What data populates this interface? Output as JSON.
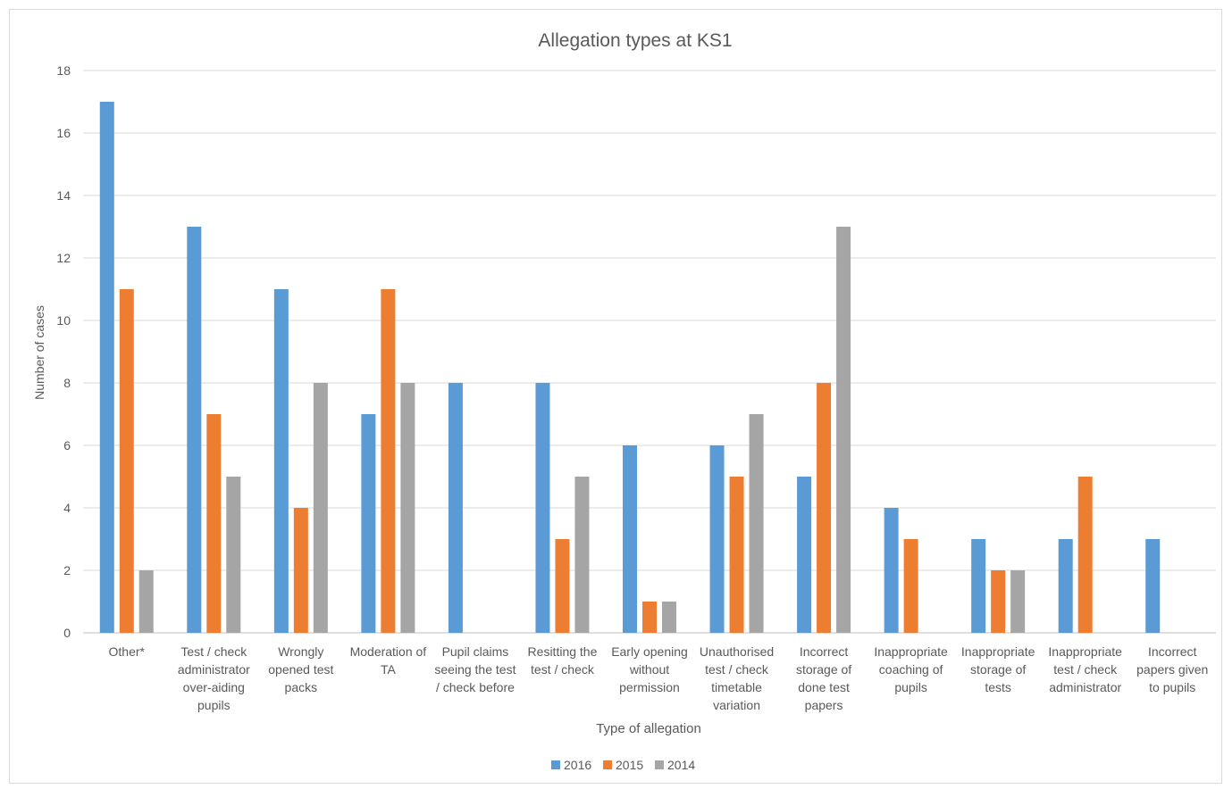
{
  "chart_data": {
    "type": "bar",
    "title": "Allegation types at KS1",
    "xlabel": "Type of allegation",
    "ylabel": "Number of cases",
    "ylim": [
      0,
      18
    ],
    "yticks": [
      "0",
      "2",
      "4",
      "6",
      "8",
      "10",
      "12",
      "14",
      "16",
      "18"
    ],
    "grid": true,
    "legend_position": "bottom",
    "categories": [
      [
        "Other*"
      ],
      [
        "Test / check",
        "administrator",
        "over-aiding",
        "pupils"
      ],
      [
        "Wrongly",
        "opened test",
        "packs"
      ],
      [
        "Moderation of",
        "TA"
      ],
      [
        "Pupil claims",
        "seeing the test",
        "/ check before"
      ],
      [
        "Resitting the",
        "test / check"
      ],
      [
        "Early opening",
        "without",
        "permission"
      ],
      [
        "Unauthorised",
        "test / check",
        "timetable",
        "variation"
      ],
      [
        "Incorrect",
        "storage of",
        "done test",
        "papers"
      ],
      [
        "Inappropriate",
        "coaching of",
        "pupils"
      ],
      [
        "Inappropriate",
        "storage of",
        "tests"
      ],
      [
        "Inappropriate",
        "test / check",
        "administrator"
      ],
      [
        "Incorrect",
        "papers given",
        "to pupils"
      ]
    ],
    "series": [
      {
        "name": "2016",
        "color": "#5b9bd5",
        "values": [
          17,
          13,
          11,
          7,
          8,
          8,
          6,
          6,
          5,
          4,
          3,
          3,
          3
        ]
      },
      {
        "name": "2015",
        "color": "#ed7d31",
        "values": [
          11,
          7,
          4,
          11,
          0,
          3,
          1,
          5,
          8,
          3,
          2,
          5,
          0
        ]
      },
      {
        "name": "2014",
        "color": "#a5a5a5",
        "values": [
          2,
          5,
          8,
          8,
          0,
          5,
          1,
          7,
          13,
          0,
          2,
          0,
          0
        ]
      }
    ]
  }
}
